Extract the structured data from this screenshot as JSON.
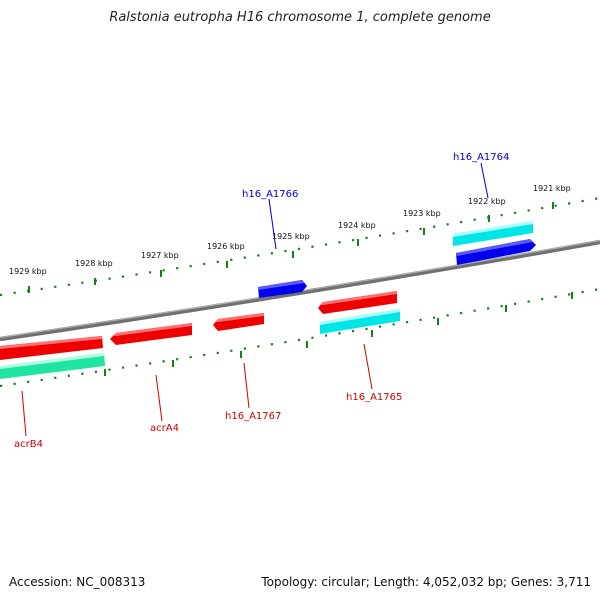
{
  "header": {
    "title": "Ralstonia eutropha H16 chromosome 1, complete genome"
  },
  "footer": {
    "accession": "Accession: NC_008313",
    "summary": "Topology: circular; Length: 4,052,032 bp; Genes: 3,711"
  },
  "colors": {
    "forward_gene": "#0000ee",
    "reverse_gene": "#ee0000",
    "forward_rna": "#00e5e5",
    "reverse_rna": "#1ee6a0",
    "backbone": "#808080",
    "ticks": "#1a7f1a"
  },
  "scale": {
    "unit": "kbp",
    "tick_labels": [
      "1921 kbp",
      "1922 kbp",
      "1923 kbp",
      "1924 kbp",
      "1925 kbp",
      "1926 kbp",
      "1927 kbp",
      "1928 kbp",
      "1929 kbp"
    ]
  },
  "features": [
    {
      "label": "h16_A1764",
      "strand": "forward",
      "kind": "gene"
    },
    {
      "label": "h16_A1766",
      "strand": "forward",
      "kind": "gene"
    },
    {
      "label": "h16_A1765",
      "strand": "reverse",
      "kind": "gene"
    },
    {
      "label": "h16_A1767",
      "strand": "reverse",
      "kind": "gene"
    },
    {
      "label": "acrA4",
      "strand": "reverse",
      "kind": "gene"
    },
    {
      "label": "acrB4",
      "strand": "reverse",
      "kind": "gene"
    }
  ]
}
